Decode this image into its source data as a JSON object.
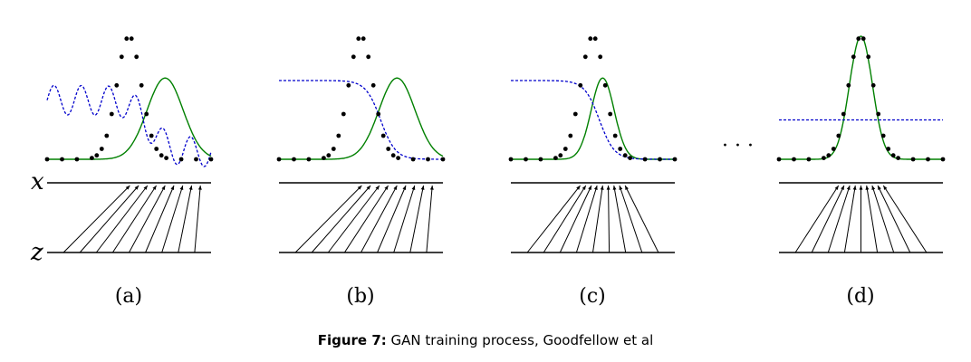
{
  "figure": {
    "axis_labels": {
      "x": "x",
      "z": "z"
    },
    "ellipsis": "· · ·",
    "panels": [
      {
        "label": "(a)",
        "green_mu": 0.72,
        "green_sigma": 0.11,
        "blue": "wavy"
      },
      {
        "label": "(b)",
        "green_mu": 0.72,
        "green_sigma": 0.11,
        "blue": "sigmoid"
      },
      {
        "label": "(c)",
        "green_mu": 0.56,
        "green_sigma": 0.07,
        "blue": "sigmoid"
      },
      {
        "label": "(d)",
        "green_mu": 0.5,
        "green_sigma": 0.07,
        "blue": "flat"
      }
    ],
    "colors": {
      "data": "#000000",
      "generator": "#008000",
      "discriminator": "#0000cc"
    }
  },
  "caption": {
    "number": "Figure 7:",
    "text": "GAN training process, Goodfellow et al"
  }
}
